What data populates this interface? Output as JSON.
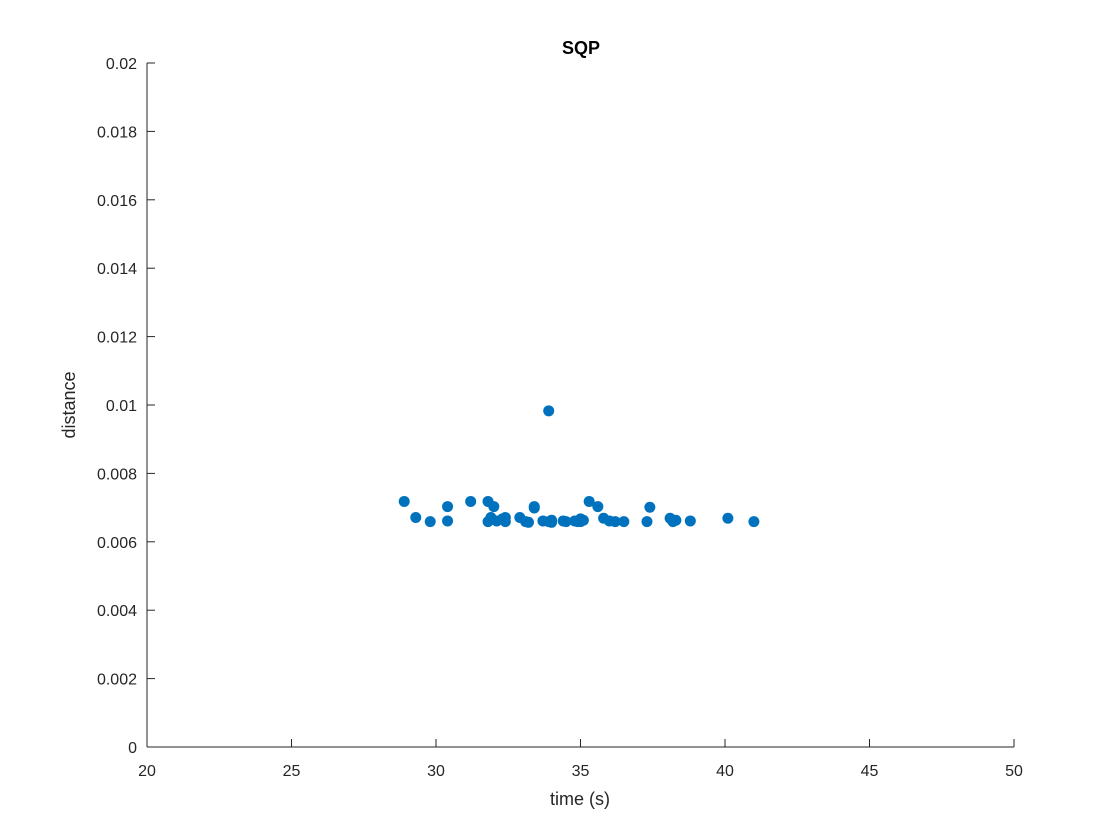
{
  "chart_data": {
    "type": "scatter",
    "title": "SQP",
    "xlabel": "time (s)",
    "ylabel": "distance",
    "xlim": [
      20,
      50
    ],
    "ylim": [
      0,
      0.02
    ],
    "x_ticks": [
      "20",
      "25",
      "30",
      "35",
      "40",
      "45",
      "50"
    ],
    "y_ticks": [
      "0",
      "0.002",
      "0.004",
      "0.006",
      "0.008",
      "0.01",
      "0.012",
      "0.014",
      "0.016",
      "0.018",
      "0.02"
    ],
    "grid": false,
    "marker_color": "#0072BD",
    "axis_color": "#262626",
    "series": [
      {
        "points": [
          [
            28.9,
            0.00718
          ],
          [
            29.3,
            0.00671
          ],
          [
            29.8,
            0.00659
          ],
          [
            30.4,
            0.00703
          ],
          [
            30.4,
            0.00661
          ],
          [
            31.2,
            0.00718
          ],
          [
            31.8,
            0.00718
          ],
          [
            31.8,
            0.00659
          ],
          [
            31.9,
            0.00671
          ],
          [
            32.0,
            0.00703
          ],
          [
            32.1,
            0.00661
          ],
          [
            32.3,
            0.00667
          ],
          [
            32.4,
            0.00671
          ],
          [
            32.4,
            0.00659
          ],
          [
            32.9,
            0.00671
          ],
          [
            33.1,
            0.00659
          ],
          [
            33.2,
            0.00657
          ],
          [
            33.4,
            0.00703
          ],
          [
            33.4,
            0.00699
          ],
          [
            33.7,
            0.00661
          ],
          [
            33.9,
            0.00983
          ],
          [
            33.9,
            0.00659
          ],
          [
            34.0,
            0.00657
          ],
          [
            34.0,
            0.00663
          ],
          [
            34.4,
            0.00661
          ],
          [
            34.5,
            0.00659
          ],
          [
            34.8,
            0.00661
          ],
          [
            34.9,
            0.00659
          ],
          [
            35.0,
            0.00667
          ],
          [
            35.0,
            0.00659
          ],
          [
            35.1,
            0.00663
          ],
          [
            35.3,
            0.00718
          ],
          [
            35.6,
            0.00703
          ],
          [
            35.8,
            0.00669
          ],
          [
            36.0,
            0.00661
          ],
          [
            36.2,
            0.00659
          ],
          [
            36.5,
            0.00659
          ],
          [
            37.3,
            0.00659
          ],
          [
            37.4,
            0.00701
          ],
          [
            38.1,
            0.00669
          ],
          [
            38.2,
            0.00659
          ],
          [
            38.3,
            0.00663
          ],
          [
            38.8,
            0.00661
          ],
          [
            40.1,
            0.00669
          ],
          [
            41.0,
            0.00659
          ]
        ]
      }
    ]
  }
}
